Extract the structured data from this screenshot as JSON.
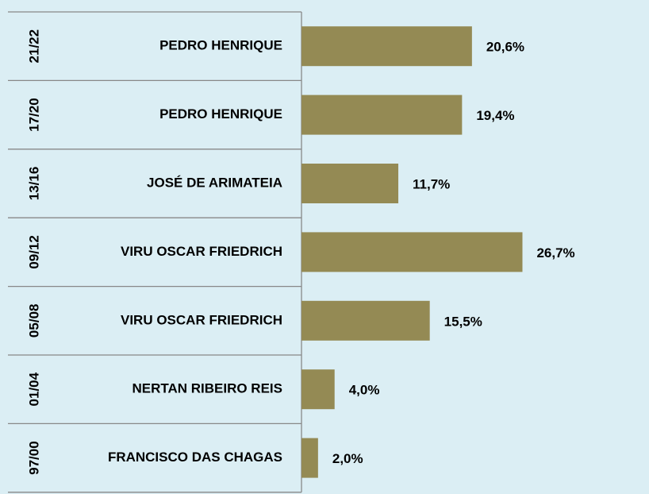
{
  "chart_data": {
    "type": "bar",
    "orientation": "horizontal",
    "groups": [
      "21/22",
      "17/20",
      "13/16",
      "09/12",
      "05/08",
      "01/04",
      "97/00"
    ],
    "categories": [
      "PEDRO HENRIQUE",
      "PEDRO HENRIQUE",
      "JOSÉ DE ARIMATEIA",
      "VIRU OSCAR FRIEDRICH",
      "VIRU OSCAR FRIEDRICH",
      "NERTAN RIBEIRO REIS",
      "FRANCISCO DAS CHAGAS"
    ],
    "values": [
      20.6,
      19.4,
      11.7,
      26.7,
      15.5,
      4.0,
      2.0
    ],
    "value_labels": [
      "20,6%",
      "19,4%",
      "11,7%",
      "26,7%",
      "15,5%",
      "4,0%",
      "2,0%"
    ],
    "color": "#948a54"
  }
}
